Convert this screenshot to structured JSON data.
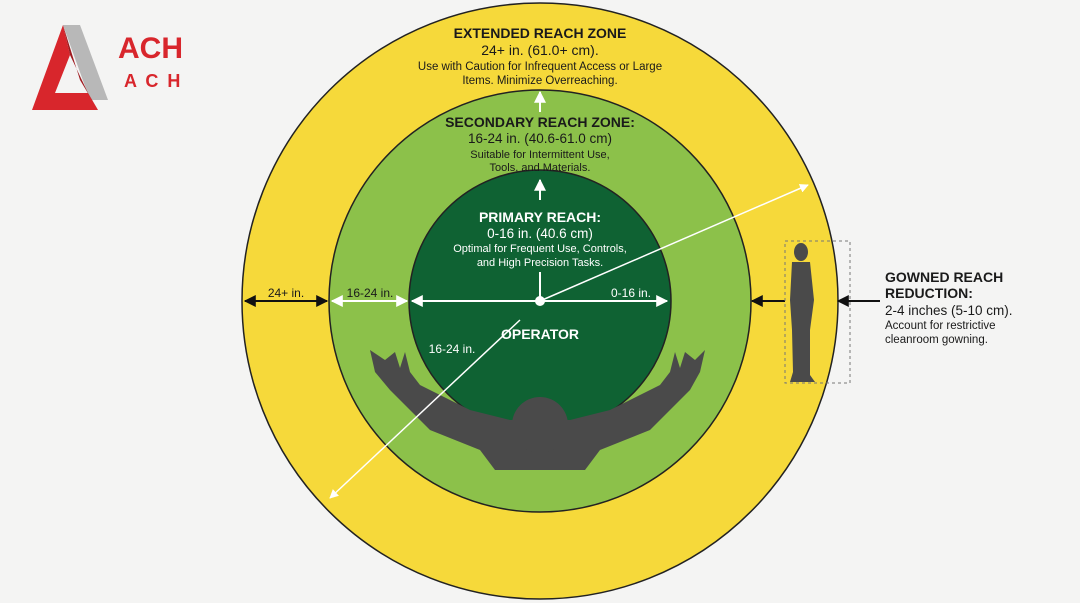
{
  "logo": {
    "text_large": "ACH",
    "text_small": "A C H",
    "color": "#d8262c"
  },
  "colors": {
    "extended": "#f6d93a",
    "secondary": "#8cc14a",
    "primary": "#0f6233",
    "silhouette": "#4a4a4a"
  },
  "extended": {
    "title": "EXTENDED REACH ZONE",
    "range": "24+ in. (61.0+ cm).",
    "desc_1": "Use with Caution for Infrequent Access or Large",
    "desc_2": "Items. Minimize Overreaching.",
    "dim_label": "24+ in."
  },
  "secondary": {
    "title": "SECONDARY REACH ZONE:",
    "range": "16-24 in. (40.6-61.0 cm)",
    "desc_1": "Suitable for Intermittent Use,",
    "desc_2": "Tools, and Materials.",
    "dim_label": "16-24 in.",
    "diag_label": "16-24 in."
  },
  "primary": {
    "title": "PRIMARY REACH:",
    "range": "0-16 in. (40.6 cm)",
    "desc_1": "Optimal for Frequent Use, Controls,",
    "desc_2": "and High Precision Tasks.",
    "dim_label": "0-16 in."
  },
  "operator_label": "OPERATOR",
  "gowned": {
    "title_1": "GOWNED REACH",
    "title_2": "REDUCTION:",
    "range": "2-4 inches (5-10 cm).",
    "desc_1": "Account for restrictive",
    "desc_2": "cleanroom gowning."
  }
}
